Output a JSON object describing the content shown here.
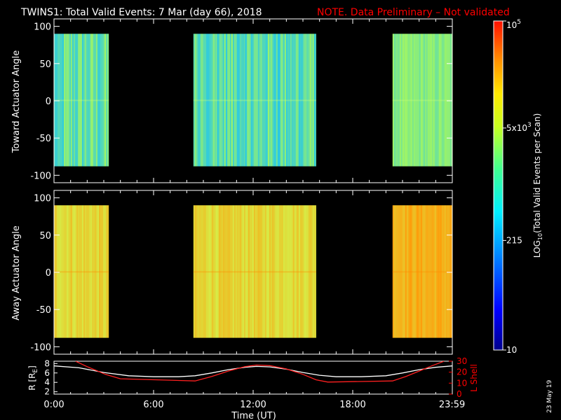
{
  "header": {
    "title": "TWINS1: Total Valid Events:  7 Mar (day  66), 2018",
    "note": "NOTE. Data Preliminary – Not validated"
  },
  "stamp": "23 May 19",
  "colors": {
    "note": "#ff0000",
    "axes": "#ffffff",
    "lshell": "#ff0000",
    "r_line": "#ffffff"
  },
  "chart_data": [
    {
      "type": "heatmap",
      "name": "toward",
      "ylabel": "Toward Actuator Angle",
      "ylim": [
        -110,
        110
      ],
      "yticks": [
        100,
        50,
        0,
        -50,
        -100
      ],
      "data_ylim": [
        -88,
        90
      ],
      "xlim_hours": [
        0,
        24
      ],
      "coverage_hours": [
        [
          0,
          3.3
        ],
        [
          8.4,
          15.8
        ],
        [
          20.4,
          24
        ]
      ],
      "dominant_level": "low (cyan/green)"
    },
    {
      "type": "heatmap",
      "name": "away",
      "ylabel": "Away Actuator Angle",
      "ylim": [
        -110,
        110
      ],
      "yticks": [
        100,
        50,
        0,
        -50,
        -100
      ],
      "data_ylim": [
        -88,
        90
      ],
      "xlim_hours": [
        0,
        24
      ],
      "coverage_hours": [
        [
          0,
          3.3
        ],
        [
          8.4,
          15.8
        ],
        [
          20.4,
          24
        ]
      ],
      "dominant_level": "high (yellow/orange)"
    },
    {
      "type": "line",
      "name": "ephemeris",
      "xlabel": "Time (UT)",
      "xticks": [
        "0:00",
        "6:00",
        "12:00",
        "18:00",
        "23:59"
      ],
      "xtick_hours": [
        0,
        6,
        12,
        18,
        23.983
      ],
      "left_axis": {
        "label": "R [R",
        "label_sub": "E",
        "label_end": "]",
        "ylim": [
          1.5,
          8.5
        ],
        "ticks": [
          "8",
          "6",
          "4",
          "2"
        ]
      },
      "right_axis": {
        "label": "L Shell",
        "ylim": [
          0,
          30
        ],
        "ticks": [
          "30",
          "20",
          "10",
          "0"
        ]
      },
      "series": [
        {
          "axis": "left",
          "hours": [
            0,
            1.5,
            3,
            4.5,
            6,
            7.5,
            8.5,
            9.5,
            10.5,
            11.5,
            12.2,
            13,
            14,
            15,
            16,
            17,
            18.5,
            20,
            21,
            22,
            23,
            24
          ],
          "values": [
            7.5,
            7.1,
            6.1,
            5.4,
            5.2,
            5.2,
            5.4,
            6.0,
            6.7,
            7.2,
            7.4,
            7.3,
            6.8,
            6.1,
            5.5,
            5.2,
            5.2,
            5.4,
            6.0,
            6.7,
            7.2,
            7.5
          ]
        },
        {
          "axis": "right",
          "hours": [
            1.3,
            2.0,
            3.1,
            4.0,
            8.5,
            9.5,
            10.5,
            11.5,
            12.2,
            13,
            14,
            15,
            15.8,
            16.5,
            20.4,
            21.2,
            22,
            22.8,
            23.5
          ],
          "values": [
            30,
            25,
            18,
            14,
            12,
            16,
            21,
            25,
            26.5,
            26,
            23,
            18,
            13,
            11,
            12,
            16,
            21,
            26,
            30
          ]
        }
      ]
    }
  ],
  "colorbar": {
    "label": "LOG",
    "label_sub": "10",
    "label_rest": "(Total Valid Events per Scan)",
    "ticks": [
      {
        "value": 100000,
        "mantissa": "10",
        "exp": "5"
      },
      {
        "value": 5000,
        "mantissa": "5x10",
        "exp": "3"
      },
      {
        "value": 215,
        "mantissa": "215",
        "exp": ""
      },
      {
        "value": 10,
        "mantissa": "10",
        "exp": ""
      }
    ],
    "range": [
      10,
      100000
    ]
  }
}
